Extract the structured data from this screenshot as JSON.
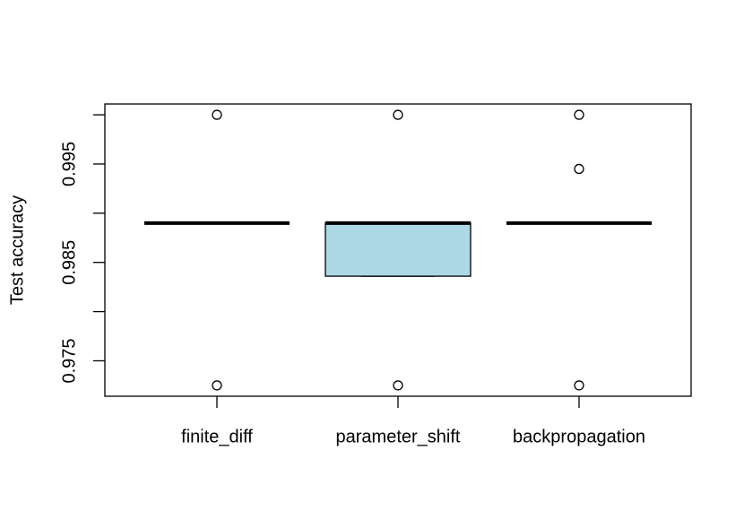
{
  "chart_data": {
    "type": "box",
    "y_label": "Test accuracy",
    "categories": [
      "finite_diff",
      "parameter_shift",
      "backpropagation"
    ],
    "boxes": [
      {
        "min": 0.989,
        "q1": 0.989,
        "median": 0.989,
        "q3": 0.989,
        "max": 0.989,
        "outliers": [
          1.0,
          0.9725
        ]
      },
      {
        "min": 0.9836,
        "q1": 0.9836,
        "median": 0.989,
        "q3": 0.989,
        "max": 0.989,
        "outliers": [
          1.0,
          0.9725
        ]
      },
      {
        "min": 0.989,
        "q1": 0.989,
        "median": 0.989,
        "q3": 0.989,
        "max": 0.989,
        "outliers": [
          1.0,
          0.9945,
          0.9725
        ]
      }
    ],
    "colors": [
      "#ffffff",
      "#add8e6",
      "#ffffff"
    ],
    "ylim": [
      0.9714,
      1.0011
    ],
    "yticks": [
      0.975,
      0.985,
      0.995
    ],
    "yminor_ticks": [
      0.98,
      0.99,
      1.0
    ]
  }
}
